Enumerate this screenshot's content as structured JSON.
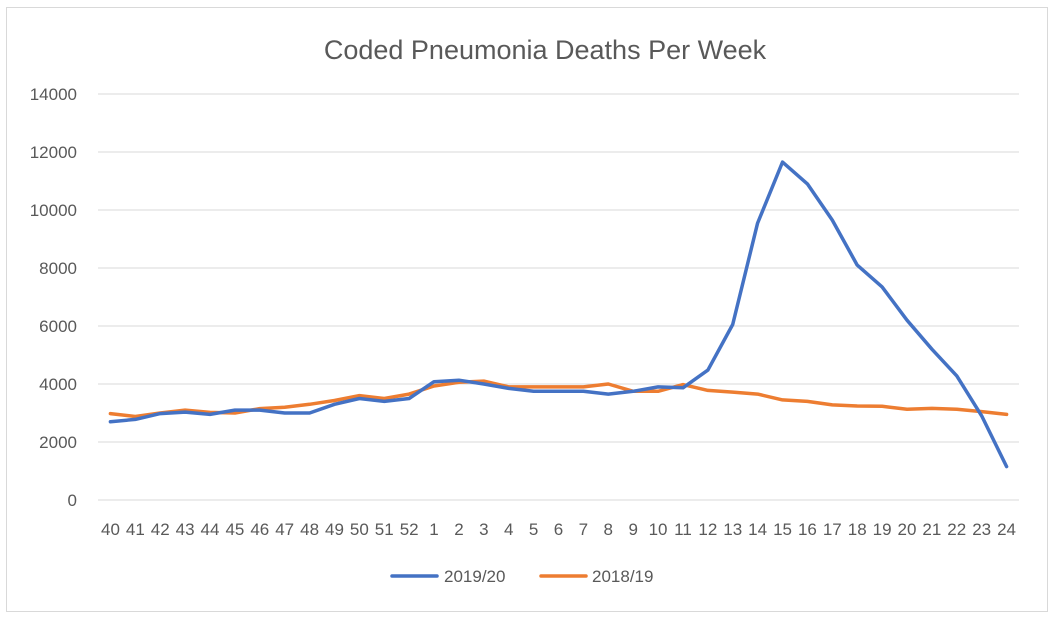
{
  "chart_data": {
    "type": "line",
    "title": "Coded Pneumonia Deaths Per Week",
    "xlabel": "",
    "ylabel": "",
    "categories": [
      "40",
      "41",
      "42",
      "43",
      "44",
      "45",
      "46",
      "47",
      "48",
      "49",
      "50",
      "51",
      "52",
      "1",
      "2",
      "3",
      "4",
      "5",
      "6",
      "7",
      "8",
      "9",
      "10",
      "11",
      "12",
      "13",
      "14",
      "15",
      "16",
      "17",
      "18",
      "19",
      "20",
      "21",
      "22",
      "23",
      "24"
    ],
    "ylim": [
      0,
      14000
    ],
    "yticks": [
      0,
      2000,
      4000,
      6000,
      8000,
      10000,
      12000,
      14000
    ],
    "grid": true,
    "legend_position": "bottom",
    "series": [
      {
        "name": "2019/20",
        "color": "#4472c4",
        "values": [
          2700,
          2780,
          2980,
          3030,
          2950,
          3100,
          3100,
          3000,
          3000,
          3300,
          3500,
          3400,
          3500,
          4080,
          4130,
          4000,
          3850,
          3750,
          3750,
          3750,
          3650,
          3750,
          3900,
          3870,
          4480,
          6050,
          9550,
          11650,
          10900,
          9650,
          8100,
          7350,
          6200,
          5200,
          4280,
          2900,
          1150
        ]
      },
      {
        "name": "2018/19",
        "color": "#ed7d31",
        "values": [
          2980,
          2880,
          3000,
          3100,
          3020,
          3000,
          3150,
          3200,
          3300,
          3430,
          3600,
          3500,
          3650,
          3930,
          4060,
          4100,
          3900,
          3900,
          3900,
          3900,
          4000,
          3750,
          3750,
          3980,
          3780,
          3720,
          3650,
          3450,
          3400,
          3280,
          3240,
          3230,
          3130,
          3160,
          3130,
          3050,
          2950
        ]
      }
    ]
  }
}
